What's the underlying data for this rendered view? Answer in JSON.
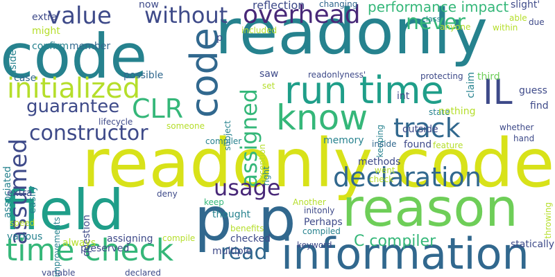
{
  "palette": {
    "dark_purple": "#482878",
    "indigo": "#3e4a89",
    "blue": "#31688e",
    "teal": "#26828e",
    "green_teal": "#1f9e89",
    "green": "#35b779",
    "light_green": "#6ece58",
    "lime": "#b5de2b",
    "yellow": "#d8e219"
  },
  "words": [
    {
      "text": "code",
      "color": "teal"
    },
    {
      "text": "readonly",
      "color": "teal"
    },
    {
      "text": "readonly code",
      "color": "yellow"
    },
    {
      "text": "field",
      "color": "green_teal"
    },
    {
      "text": "reason",
      "color": "light_green"
    },
    {
      "text": "information",
      "color": "blue"
    },
    {
      "text": "p",
      "color": "blue"
    },
    {
      "text": "p",
      "color": "blue"
    },
    {
      "text": "time check",
      "color": "green"
    },
    {
      "text": "run time",
      "color": "green_teal"
    },
    {
      "text": "know",
      "color": "green"
    },
    {
      "text": "code",
      "color": "blue"
    },
    {
      "text": "initialized",
      "color": "lime"
    },
    {
      "text": "IL",
      "color": "indigo"
    },
    {
      "text": "value",
      "color": "indigo"
    },
    {
      "text": "without",
      "color": "indigo"
    },
    {
      "text": "overhead",
      "color": "dark_purple"
    },
    {
      "text": "never",
      "color": "green"
    },
    {
      "text": "CLR",
      "color": "green"
    },
    {
      "text": "guarantee",
      "color": "indigo"
    },
    {
      "text": "constructor",
      "color": "indigo"
    },
    {
      "text": "track",
      "color": "blue"
    },
    {
      "text": "assumed",
      "color": "indigo"
    },
    {
      "text": "assigned",
      "color": "green"
    },
    {
      "text": "usage",
      "color": "dark_purple"
    },
    {
      "text": "declaration",
      "color": "blue"
    },
    {
      "text": "read",
      "color": "blue"
    },
    {
      "text": "C compiler",
      "color": "green"
    },
    {
      "text": "performance impact",
      "color": "green"
    },
    {
      "text": "reflection",
      "color": "indigo"
    },
    {
      "text": "changing",
      "color": "blue"
    },
    {
      "text": "slight'",
      "color": "indigo"
    },
    {
      "text": "able",
      "color": "lime"
    },
    {
      "text": "class",
      "color": "teal"
    },
    {
      "text": "anyone",
      "color": "lime"
    },
    {
      "text": "within",
      "color": "lime"
    },
    {
      "text": "due",
      "color": "indigo"
    },
    {
      "text": "extra",
      "color": "indigo"
    },
    {
      "text": "might",
      "color": "lime"
    },
    {
      "text": "confirm",
      "color": "teal"
    },
    {
      "text": "member",
      "color": "blue"
    },
    {
      "text": "now",
      "color": "indigo"
    },
    {
      "text": "p",
      "color": "indigo"
    },
    {
      "text": "included",
      "color": "lime"
    },
    {
      "text": "aside",
      "color": "teal"
    },
    {
      "text": "case",
      "color": "blue"
    },
    {
      "text": "possible",
      "color": "blue"
    },
    {
      "text": "saw",
      "color": "indigo"
    },
    {
      "text": "readonlyness'",
      "color": "indigo"
    },
    {
      "text": "protecting",
      "color": "indigo"
    },
    {
      "text": "claim",
      "color": "teal"
    },
    {
      "text": "third",
      "color": "light_green"
    },
    {
      "text": "set",
      "color": "lime"
    },
    {
      "text": "subject",
      "color": "teal"
    },
    {
      "text": "exception",
      "color": "lime"
    },
    {
      "text": "keeping",
      "color": "teal"
    },
    {
      "text": "int",
      "color": "indigo"
    },
    {
      "text": "state",
      "color": "teal"
    },
    {
      "text": "nothing",
      "color": "lime"
    },
    {
      "text": "guess",
      "color": "indigo"
    },
    {
      "text": "find",
      "color": "indigo"
    },
    {
      "text": "associated",
      "color": "teal"
    },
    {
      "text": "lifecycle",
      "color": "indigo"
    },
    {
      "text": "someone",
      "color": "lime"
    },
    {
      "text": "outside",
      "color": "indigo"
    },
    {
      "text": "whether",
      "color": "indigo"
    },
    {
      "text": "hand",
      "color": "indigo"
    },
    {
      "text": "compiler",
      "color": "teal"
    },
    {
      "text": "memory",
      "color": "teal"
    },
    {
      "text": "inside",
      "color": "blue"
    },
    {
      "text": "found",
      "color": "indigo"
    },
    {
      "text": "feature",
      "color": "lime"
    },
    {
      "text": "right",
      "color": "teal"
    },
    {
      "text": "easily",
      "color": "teal"
    },
    {
      "text": "methods",
      "color": "indigo"
    },
    {
      "text": "went",
      "color": "lime"
    },
    {
      "text": "check",
      "color": "lime"
    },
    {
      "text": "statically",
      "color": "indigo"
    },
    {
      "text": "extra",
      "color": "indigo"
    },
    {
      "text": "improvements",
      "color": "teal"
    },
    {
      "text": "question",
      "color": "indigo"
    },
    {
      "text": "deny",
      "color": "indigo"
    },
    {
      "text": "keep",
      "color": "green"
    },
    {
      "text": "Another",
      "color": "lime"
    },
    {
      "text": "initonly",
      "color": "indigo"
    },
    {
      "text": "Perhaps",
      "color": "indigo"
    },
    {
      "text": "compiled",
      "color": "teal"
    },
    {
      "text": "speed",
      "color": "lime"
    },
    {
      "text": "thought",
      "color": "teal"
    },
    {
      "text": "benefits",
      "color": "lime"
    },
    {
      "text": "throwing",
      "color": "lime"
    },
    {
      "text": "various",
      "color": "teal"
    },
    {
      "text": "assigning",
      "color": "indigo"
    },
    {
      "text": "compile",
      "color": "lime"
    },
    {
      "text": "checked",
      "color": "indigo"
    },
    {
      "text": "always",
      "color": "lime"
    },
    {
      "text": "preserved",
      "color": "indigo"
    },
    {
      "text": "keyword",
      "color": "indigo"
    },
    {
      "text": "multiple",
      "color": "indigo"
    },
    {
      "text": "variable",
      "color": "indigo"
    },
    {
      "text": "declared",
      "color": "indigo"
    }
  ]
}
